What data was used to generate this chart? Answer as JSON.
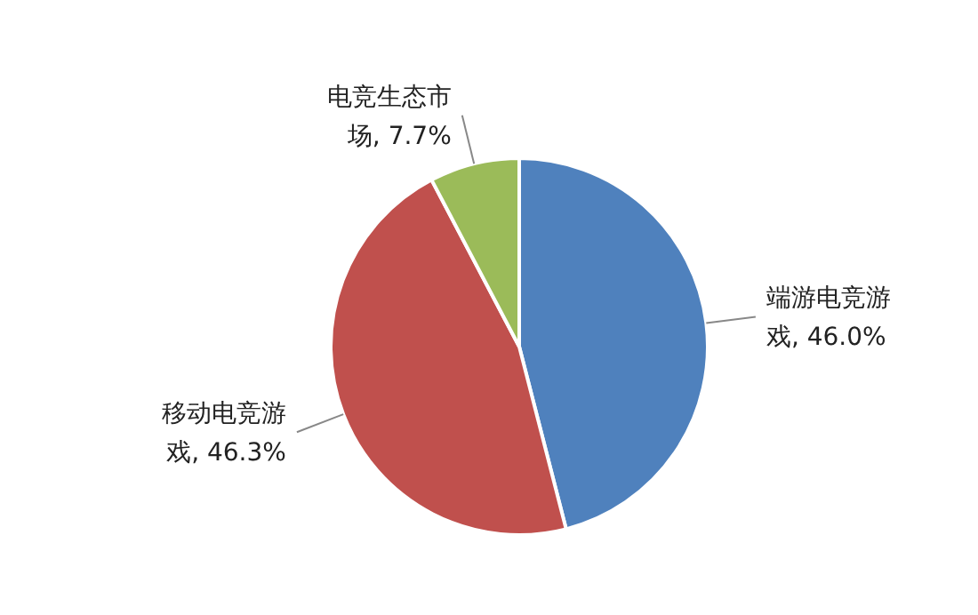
{
  "chart_data": {
    "type": "pie",
    "categories": [
      "端游电竞游戏",
      "移动电竞游戏",
      "电竞生态市场"
    ],
    "values": [
      46.0,
      46.3,
      7.7
    ],
    "colors": [
      "#4f81bd",
      "#c0504d",
      "#9bbb59"
    ],
    "value_labels": [
      "46.0%",
      "46.3%",
      "7.7%"
    ],
    "legend": false
  }
}
